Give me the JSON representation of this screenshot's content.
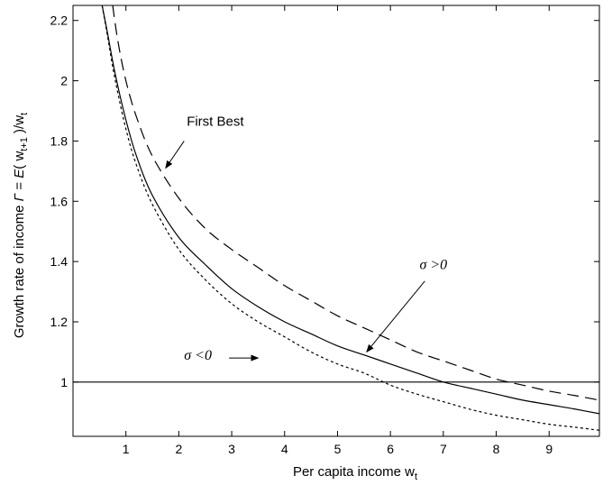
{
  "chart_data": {
    "type": "line",
    "xlabel": "Per capita income w",
    "xlabel_sub": "t",
    "ylabel_parts": {
      "before": "Growth rate of income ",
      "gamma": "Γ",
      "mid": " = ",
      "E": "E",
      "paren_open": "( w",
      "sub_t1": "t+1",
      "paren_close": " )/w",
      "sub_t": "t"
    },
    "xlim": [
      0,
      9.95
    ],
    "ylim": [
      0.82,
      2.25
    ],
    "xticks": [
      1,
      2,
      3,
      4,
      5,
      6,
      7,
      8,
      9
    ],
    "yticks": [
      1,
      1.2,
      1.4,
      1.6,
      1.8,
      2,
      2.2
    ],
    "ytick_labels": [
      "1",
      "1.2",
      "1.4",
      "1.6",
      "1.8",
      "2",
      "2.2"
    ],
    "grid": false,
    "series": [
      {
        "style": "dashed-long",
        "x": [
          0.75,
          0.85,
          1.0,
          1.2,
          1.5,
          2.0,
          2.5,
          3.0,
          3.5,
          4.0,
          4.5,
          5.0,
          5.5,
          6.0,
          6.5,
          7.0,
          7.5,
          8.0,
          8.5,
          9.0,
          9.5,
          9.95
        ],
        "y": [
          2.25,
          2.13,
          2.0,
          1.88,
          1.75,
          1.61,
          1.51,
          1.44,
          1.38,
          1.32,
          1.27,
          1.22,
          1.18,
          1.14,
          1.1,
          1.07,
          1.04,
          1.01,
          0.99,
          0.97,
          0.955,
          0.94
        ]
      },
      {
        "style": "solid",
        "x": [
          0.55,
          0.65,
          0.8,
          1.0,
          1.2,
          1.5,
          2.0,
          2.5,
          3.0,
          3.5,
          4.0,
          4.5,
          5.0,
          5.5,
          6.0,
          6.5,
          7.0,
          7.5,
          8.0,
          8.5,
          9.0,
          9.5,
          9.95
        ],
        "y": [
          2.25,
          2.16,
          2.02,
          1.87,
          1.75,
          1.62,
          1.48,
          1.39,
          1.31,
          1.25,
          1.2,
          1.16,
          1.12,
          1.09,
          1.06,
          1.03,
          1.0,
          0.98,
          0.96,
          0.94,
          0.925,
          0.91,
          0.895
        ]
      },
      {
        "style": "dotted",
        "x": [
          0.55,
          0.65,
          0.8,
          1.0,
          1.2,
          1.5,
          2.0,
          2.5,
          3.0,
          3.5,
          4.0,
          4.5,
          5.0,
          5.5,
          6.0,
          6.5,
          7.0,
          7.5,
          8.0,
          8.5,
          9.0,
          9.5,
          9.95
        ],
        "y": [
          2.25,
          2.15,
          2.0,
          1.84,
          1.72,
          1.59,
          1.44,
          1.34,
          1.26,
          1.2,
          1.15,
          1.1,
          1.06,
          1.03,
          0.99,
          0.96,
          0.935,
          0.91,
          0.89,
          0.875,
          0.86,
          0.85,
          0.84
        ]
      },
      {
        "style": "solid-reference",
        "x": [
          0,
          9.95
        ],
        "y": [
          1,
          1
        ]
      }
    ],
    "annotations": [
      {
        "text": "First Best",
        "italic": false,
        "x": 2.15,
        "y": 1.85,
        "arrow_from": [
          2.1,
          1.8
        ],
        "arrow_to": [
          1.75,
          1.71
        ]
      },
      {
        "text": "σ >0",
        "italic": true,
        "x": 6.55,
        "y": 1.375,
        "arrow_from": [
          6.65,
          1.335
        ],
        "arrow_to": [
          5.55,
          1.1
        ]
      },
      {
        "text": "σ <0",
        "italic": true,
        "x": 2.1,
        "y": 1.075,
        "arrow_from": [
          2.95,
          1.08
        ],
        "arrow_to": [
          3.5,
          1.08
        ]
      }
    ]
  }
}
